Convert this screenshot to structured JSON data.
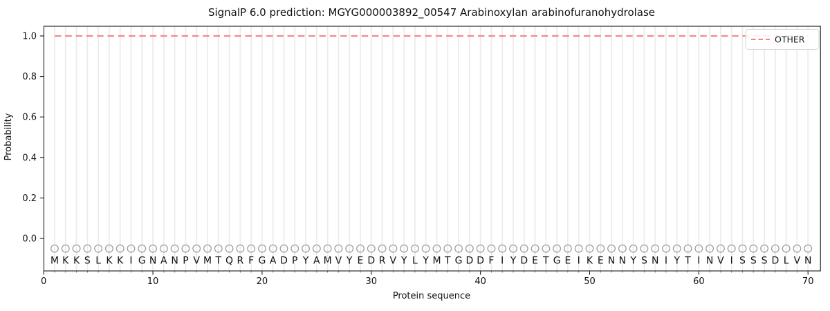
{
  "chart_data": {
    "type": "line",
    "title": "SignalP 6.0 prediction: MGYG000003892_00547 Arabinoxylan arabinofuranohydrolase",
    "xlabel": "Protein sequence",
    "ylabel": "Probability",
    "xlim": [
      0,
      71.5
    ],
    "ylim": [
      -0.16,
      1.05
    ],
    "xticks": [
      0,
      10,
      20,
      30,
      40,
      50,
      60,
      70
    ],
    "yticks": [
      "0.0",
      "0.2",
      "0.4",
      "0.6",
      "0.8",
      "1.0"
    ],
    "grid": "light vertical gridline at every residue position 1-70",
    "legend": {
      "position": "upper right",
      "entries": [
        {
          "label": "OTHER",
          "color": "#f48383",
          "line_style": "dashed"
        }
      ]
    },
    "sequence": "MKKSLKKIGNANPVMTQRFGADPYAMVYEDRVYLYMTGDDFIYDETGEIKENNYSNIYTINVISSSDLVN",
    "residue_positions": {
      "first": 1,
      "last": 70,
      "step": 1
    },
    "series": [
      {
        "name": "OTHER",
        "color": "#f48383",
        "line_style": "dashed",
        "values": [
          1,
          1,
          1,
          1,
          1,
          1,
          1,
          1,
          1,
          1,
          1,
          1,
          1,
          1,
          1,
          1,
          1,
          1,
          1,
          1,
          1,
          1,
          1,
          1,
          1,
          1,
          1,
          1,
          1,
          1,
          1,
          1,
          1,
          1,
          1,
          1,
          1,
          1,
          1,
          1,
          1,
          1,
          1,
          1,
          1,
          1,
          1,
          1,
          1,
          1,
          1,
          1,
          1,
          1,
          1,
          1,
          1,
          1,
          1,
          1,
          1,
          1,
          1,
          1,
          1,
          1,
          1,
          1,
          1,
          1
        ]
      }
    ],
    "marker_row": {
      "symbol": "open-circle",
      "probability_y": -0.05,
      "color": "#9e9e9e"
    },
    "colors": {
      "other_line": "#f48383",
      "gridline": "#ececec",
      "marker_stroke": "#9e9e9e",
      "residue_letter": "#262626",
      "spine": "#000000",
      "legend_border": "#d6d6d6"
    }
  }
}
